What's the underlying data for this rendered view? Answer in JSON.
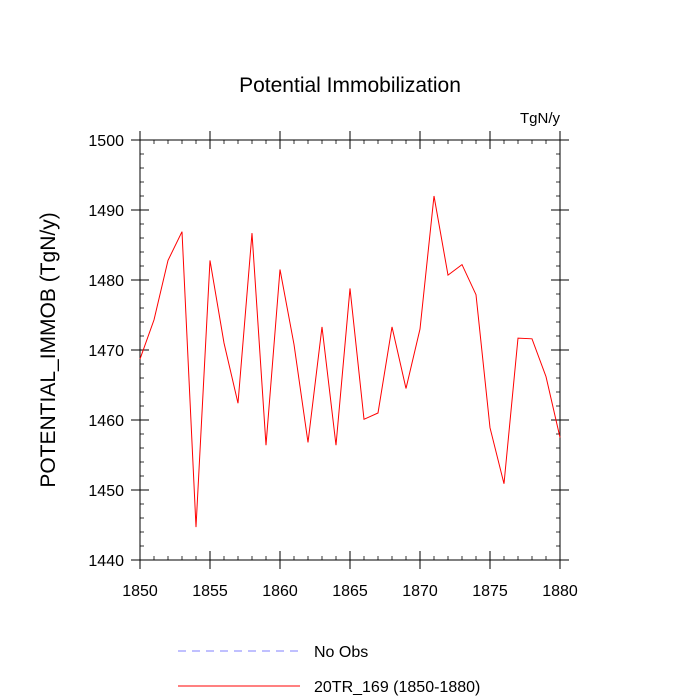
{
  "chart_data": {
    "type": "line",
    "title": "Potential Immobilization",
    "units": "TgN/y",
    "xlabel": "",
    "ylabel": "POTENTIAL_IMMOB  (TgN/y)",
    "xlim": [
      1850,
      1880
    ],
    "ylim": [
      1440,
      1500
    ],
    "x_ticks": [
      "1850",
      "1855",
      "1860",
      "1865",
      "1870",
      "1875",
      "1880"
    ],
    "y_ticks": [
      "1440",
      "1450",
      "1460",
      "1470",
      "1480",
      "1490",
      "1500"
    ],
    "x_minor_step": 1,
    "y_minor_step": 2,
    "grid": false,
    "legend_position": "bottom",
    "series": [
      {
        "name": "No Obs",
        "color": "#8080ff",
        "dash": "dashed",
        "x": [],
        "values": []
      },
      {
        "name": "20TR_169 (1850-1880)",
        "color": "#ff0000",
        "dash": "solid",
        "x": [
          1850,
          1851,
          1852,
          1853,
          1854,
          1855,
          1856,
          1857,
          1858,
          1859,
          1860,
          1861,
          1862,
          1863,
          1864,
          1865,
          1866,
          1867,
          1868,
          1869,
          1870,
          1871,
          1872,
          1873,
          1874,
          1875,
          1876,
          1877,
          1878,
          1879,
          1880
        ],
        "values": [
          1468.7,
          1474.3,
          1482.8,
          1486.9,
          1444.7,
          1482.8,
          1471.0,
          1462.4,
          1486.7,
          1456.4,
          1481.5,
          1470.8,
          1456.8,
          1473.3,
          1456.4,
          1478.8,
          1460.1,
          1461.0,
          1473.3,
          1464.5,
          1473.0,
          1492.0,
          1480.7,
          1482.2,
          1477.9,
          1458.9,
          1450.9,
          1471.7,
          1471.6,
          1466.2,
          1457.5
        ]
      }
    ]
  }
}
